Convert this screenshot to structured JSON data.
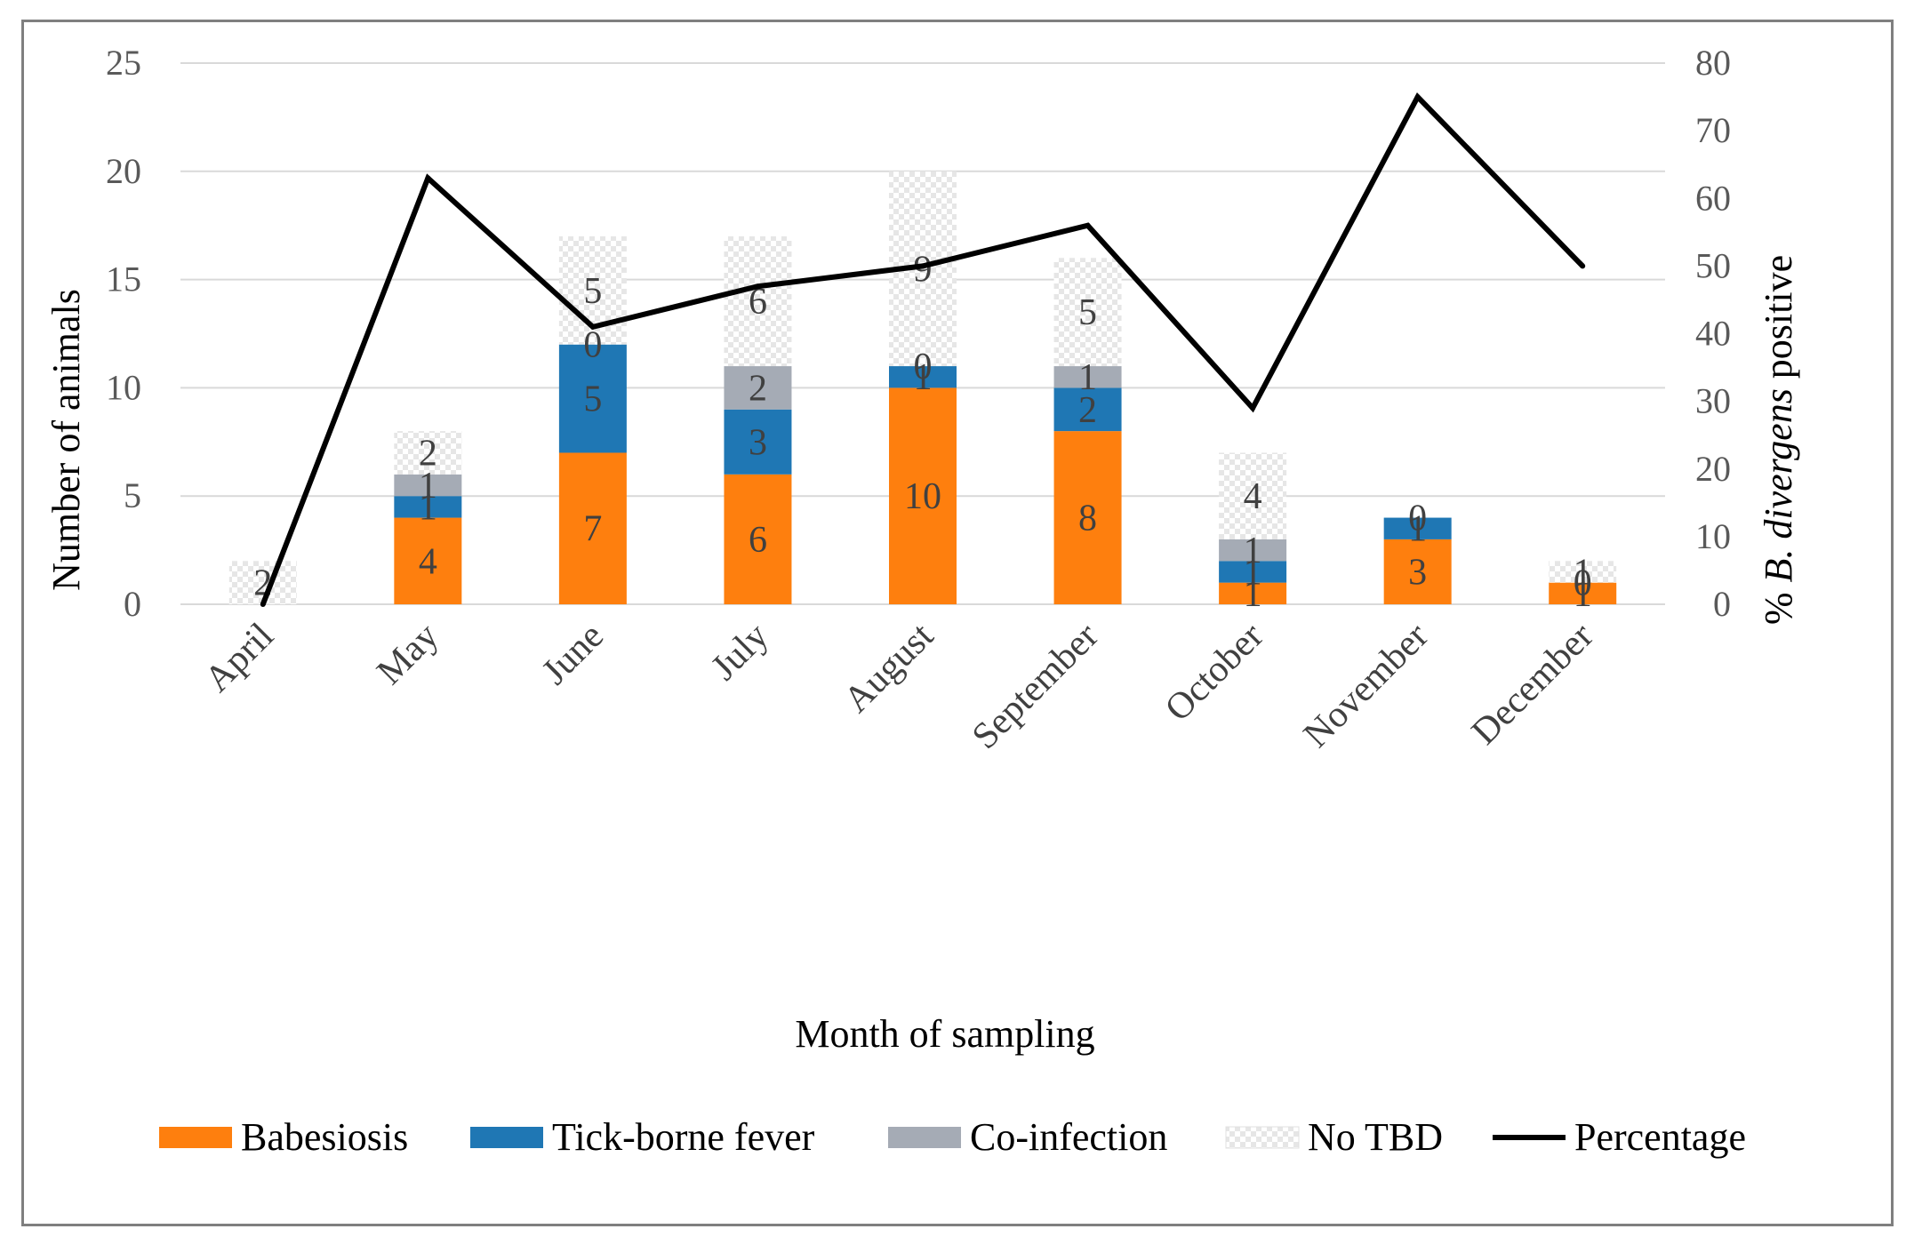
{
  "chart_data": {
    "type": "bar",
    "stacked": true,
    "xlabel": "Month of sampling",
    "ylabel": "Number of animals",
    "y2label": {
      "prefix": "% ",
      "italic": "B. divergens",
      "suffix": " positive"
    },
    "ylim": [
      0,
      25
    ],
    "y2lim": [
      0,
      80
    ],
    "yticks": [
      "0",
      "5",
      "10",
      "15",
      "20",
      "25"
    ],
    "y2ticks": [
      "0",
      "10",
      "20",
      "30",
      "40",
      "50",
      "60",
      "70",
      "80"
    ],
    "categories": [
      "April",
      "May",
      "June",
      "July",
      "August",
      "September",
      "October",
      "November",
      "December"
    ],
    "series": [
      {
        "name": "Babesiosis",
        "color": "#fe7f0e",
        "values": [
          0,
          4,
          7,
          6,
          10,
          8,
          1,
          3,
          1
        ],
        "labels": [
          "",
          "4",
          "7",
          "6",
          "10",
          "8",
          "1",
          "3",
          "1"
        ]
      },
      {
        "name": "Tick-borne fever",
        "color": "#1f77b4",
        "values": [
          0,
          1,
          5,
          3,
          1,
          2,
          1,
          1,
          0
        ],
        "labels": [
          "",
          "1",
          "5",
          "3",
          "1",
          "2",
          "1",
          "1",
          "0"
        ]
      },
      {
        "name": "Co-infection",
        "color": "#a5abb5",
        "values": [
          0,
          1,
          0,
          2,
          0,
          1,
          1,
          0,
          0
        ],
        "labels": [
          "",
          "1",
          "0",
          "2",
          "0",
          "1",
          "1",
          "0",
          ""
        ]
      },
      {
        "name": "No TBD",
        "color": "#ebebeb",
        "pattern": "checker",
        "values": [
          2,
          2,
          5,
          6,
          9,
          5,
          4,
          0,
          1
        ],
        "labels": [
          "2",
          "2",
          "5",
          "6",
          "9",
          "5",
          "4",
          "",
          "1"
        ]
      }
    ],
    "line": {
      "name": "Percentage",
      "axis": "secondary",
      "color": "#000000",
      "values": [
        0,
        63,
        41,
        47,
        50,
        56,
        29,
        75,
        50
      ]
    },
    "legend": {
      "position": "bottom",
      "entries": [
        "Babesiosis",
        "Tick-borne fever",
        "Co-infection",
        "No TBD",
        "Percentage"
      ]
    },
    "grid": true
  }
}
